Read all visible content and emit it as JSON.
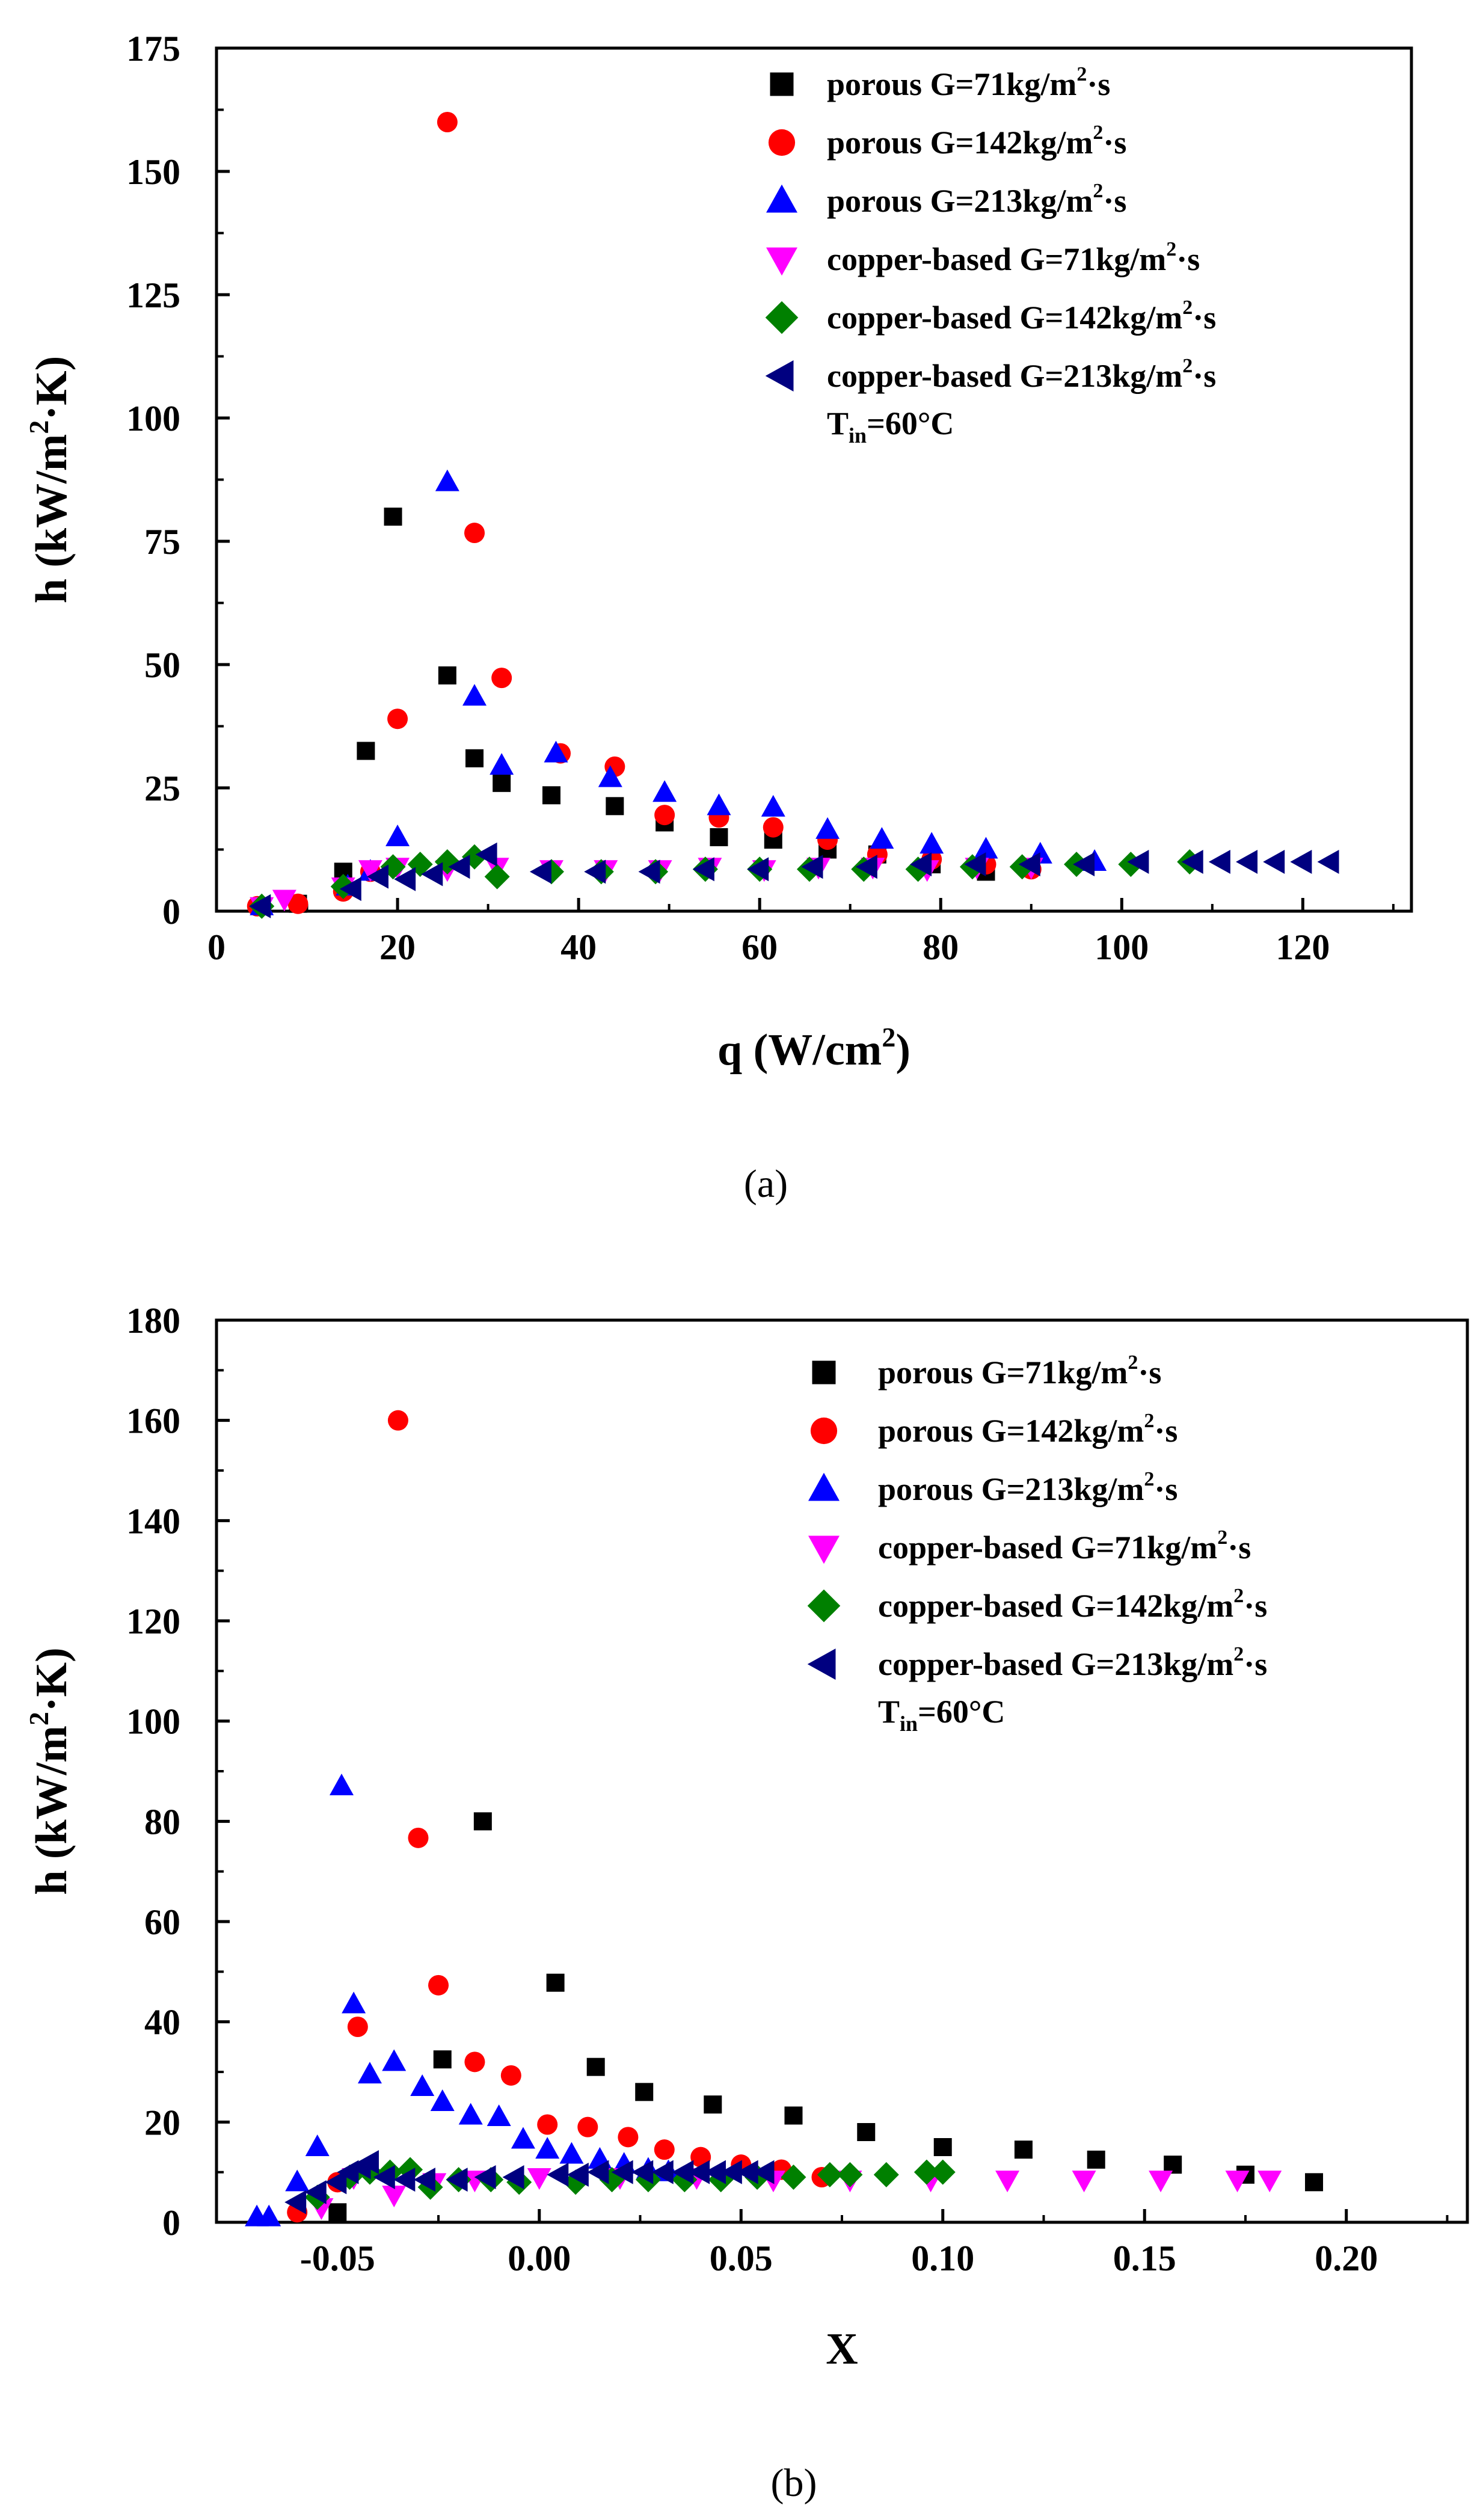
{
  "chart_data": [
    {
      "type": "scatter",
      "caption": "(a)",
      "xlabel": "q (W/cm",
      "xlabel_sup": "2",
      "xlabel_tail": ")",
      "ylabel": "h (kW/m",
      "ylabel_sup": "2",
      "ylabel_tail": "·K)",
      "xlim": [
        0,
        132
      ],
      "ylim": [
        0,
        175
      ],
      "xticks": [
        0,
        20,
        40,
        60,
        80,
        100,
        120
      ],
      "xtick_labels": [
        "0",
        "20",
        "40",
        "60",
        "80",
        "100",
        "120"
      ],
      "yticks": [
        0,
        25,
        50,
        75,
        100,
        125,
        150,
        175
      ],
      "ytick_labels": [
        "0",
        "25",
        "50",
        "75",
        "100",
        "125",
        "150",
        "175"
      ],
      "annotation": {
        "main": "T",
        "sub": "in",
        "tail": "=60°C"
      },
      "series": [
        {
          "name": "porous  G=71kg/m",
          "legend_sup": "2",
          "legend_tail": "·s",
          "marker": "square",
          "color": "#000000",
          "x": [
            5,
            9,
            14,
            16.5,
            19.5,
            25.5,
            28.5,
            31.5,
            37,
            44,
            49.5,
            55.5,
            61.5,
            67.5,
            73,
            79,
            85
          ],
          "y": [
            1,
            1.5,
            8,
            32.5,
            80,
            47.8,
            31,
            26,
            23.5,
            21.3,
            18,
            15,
            14.5,
            12.5,
            11.5,
            9.5,
            8
          ]
        },
        {
          "name": "porous  G=142kg/m",
          "legend_sup": "2",
          "legend_tail": "·s",
          "marker": "circle",
          "color": "#ff0000",
          "x": [
            4.5,
            9,
            14,
            17,
            20,
            25.5,
            28.5,
            31.5,
            38,
            44,
            49.5,
            55.5,
            61.5,
            67.5,
            73,
            79,
            85,
            90
          ],
          "y": [
            1,
            1.5,
            4,
            8,
            39,
            160,
            76.7,
            47.3,
            32,
            29.3,
            19.5,
            19,
            17,
            14.5,
            11.5,
            10.5,
            9.5,
            8.5
          ]
        },
        {
          "name": "porous  G=213kg/m",
          "legend_sup": "2",
          "legend_tail": "·s",
          "marker": "triangle-up",
          "color": "#0000ff",
          "x": [
            5,
            14.5,
            17,
            20,
            25.5,
            28.5,
            31.5,
            37.5,
            43.5,
            49.5,
            55.5,
            61.5,
            67.5,
            73.5,
            79,
            85,
            91,
            97
          ],
          "y": [
            1,
            5,
            8,
            15,
            87,
            43.5,
            29.5,
            32,
            27,
            24,
            21.3,
            21,
            16.5,
            14.5,
            13.5,
            12.5,
            11.5,
            10
          ]
        },
        {
          "name": "copper-based    G=71kg/m",
          "legend_sup": "2",
          "legend_tail": "·s",
          "marker": "triangle-down",
          "color": "#ff00ff",
          "x": [
            5,
            7.5,
            14,
            17,
            20,
            25.5,
            31,
            37,
            43,
            49,
            54.5,
            60.5,
            66.5,
            72.5,
            78.5,
            84,
            90
          ],
          "y": [
            1,
            2.5,
            5,
            8.5,
            9,
            8.5,
            9,
            8.5,
            8.5,
            8.5,
            9,
            8.5,
            9,
            9,
            8.5,
            9,
            9
          ]
        },
        {
          "name": "copper-based    G=142kg/m",
          "legend_sup": "2",
          "legend_tail": "·s",
          "marker": "diamond",
          "color": "#008000",
          "x": [
            5,
            14,
            19.5,
            22.5,
            25.5,
            28.5,
            31,
            37,
            42.5,
            48.5,
            54,
            60,
            65.5,
            71.5,
            77.5,
            83.5,
            89,
            95,
            101,
            107.5
          ],
          "y": [
            1,
            5,
            9,
            9.5,
            10,
            11,
            7,
            8,
            8,
            8,
            8.5,
            8.5,
            8.5,
            8.5,
            8.5,
            9,
            9,
            9.5,
            9.5,
            10
          ]
        },
        {
          "name": "copper-based    G=213kg/m",
          "legend_sup": "2",
          "legend_tail": "·s",
          "marker": "triangle-left",
          "color": "#000080",
          "x": [
            5,
            15,
            18,
            21,
            24,
            27,
            30,
            36,
            42,
            48,
            54,
            60,
            66,
            72,
            78,
            84,
            90,
            96,
            102,
            108,
            111,
            114,
            117,
            120,
            123
          ],
          "y": [
            1,
            4.5,
            7,
            6.5,
            7.5,
            9,
            11.5,
            8,
            8,
            8,
            8.5,
            8.5,
            9,
            9,
            9.5,
            9.5,
            9.5,
            9.5,
            10,
            10,
            10,
            10,
            10,
            10,
            10
          ]
        }
      ]
    },
    {
      "type": "scatter",
      "caption": "(b)",
      "xlabel": "X",
      "ylabel": "h (kW/m",
      "ylabel_sup": "2",
      "ylabel_tail": "·K)",
      "xlim": [
        -0.08,
        0.23
      ],
      "ylim": [
        0,
        180
      ],
      "xticks": [
        -0.05,
        0.0,
        0.05,
        0.1,
        0.15,
        0.2
      ],
      "xtick_labels": [
        "-0.05",
        "0.00",
        "0.05",
        "0.10",
        "0.15",
        "0.20"
      ],
      "yticks": [
        0,
        20,
        40,
        60,
        80,
        100,
        120,
        140,
        160,
        180
      ],
      "ytick_labels": [
        "0",
        "20",
        "40",
        "60",
        "80",
        "100",
        "120",
        "140",
        "160",
        "180"
      ],
      "annotation": {
        "main": "T",
        "sub": "in",
        "tail": "=60°C"
      },
      "series": [
        {
          "name": "porous  G=71kg/m",
          "legend_sup": "2",
          "legend_tail": "·s",
          "marker": "square",
          "color": "#000000",
          "x": [
            -0.05,
            -0.024,
            -0.014,
            0.004,
            0.014,
            0.026,
            0.043,
            0.063,
            0.081,
            0.1,
            0.12,
            0.138,
            0.157,
            0.175,
            0.192
          ],
          "y": [
            2,
            32.5,
            80,
            47.8,
            31,
            26,
            23.5,
            21.3,
            18,
            15,
            14.5,
            12.5,
            11.5,
            9.5,
            8
          ]
        },
        {
          "name": "porous  G=142kg/m",
          "legend_sup": "2",
          "legend_tail": "·s",
          "marker": "circle",
          "color": "#ff0000",
          "x": [
            -0.06,
            -0.05,
            -0.045,
            -0.035,
            -0.03,
            -0.025,
            -0.016,
            -0.007,
            0.002,
            0.012,
            0.022,
            0.031,
            0.04,
            0.05,
            0.06,
            0.07
          ],
          "y": [
            2,
            8,
            39,
            160,
            76.7,
            47.3,
            32,
            29.3,
            19.5,
            19,
            17,
            14.5,
            13,
            11.5,
            10.5,
            9
          ]
        },
        {
          "name": "porous  G=213kg/m",
          "legend_sup": "2",
          "legend_tail": "·s",
          "marker": "triangle-up",
          "color": "#0000ff",
          "x": [
            -0.07,
            -0.067,
            -0.06,
            -0.055,
            -0.049,
            -0.046,
            -0.042,
            -0.036,
            -0.029,
            -0.024,
            -0.017,
            -0.01,
            -0.004,
            0.002,
            0.008,
            0.015,
            0.021,
            0.027,
            0.032
          ],
          "y": [
            1,
            1,
            8,
            15,
            87,
            43.5,
            29.5,
            32,
            27,
            24,
            21.3,
            21,
            16.5,
            14.5,
            13.5,
            12.5,
            11.5,
            10.5,
            10
          ]
        },
        {
          "name": "copper-based    G=71kg/m",
          "legend_sup": "2",
          "legend_tail": "·s",
          "marker": "triangle-down",
          "color": "#ff00ff",
          "x": [
            -0.054,
            -0.046,
            -0.036,
            -0.026,
            -0.016,
            0.0,
            0.02,
            0.039,
            0.058,
            0.077,
            0.097,
            0.116,
            0.135,
            0.154,
            0.173,
            0.181
          ],
          "y": [
            3,
            9,
            5.5,
            8,
            8.5,
            9,
            9,
            9,
            8.5,
            8.5,
            8.5,
            8.5,
            8.5,
            8.5,
            8.5,
            8.5
          ]
        },
        {
          "name": "copper-based    G=142kg/m",
          "legend_sup": "2",
          "legend_tail": "·s",
          "marker": "diamond",
          "color": "#008000",
          "x": [
            -0.055,
            -0.047,
            -0.042,
            -0.037,
            -0.032,
            -0.027,
            -0.02,
            -0.012,
            -0.005,
            0.009,
            0.018,
            0.027,
            0.036,
            0.045,
            0.054,
            0.063,
            0.072,
            0.077,
            0.086,
            0.096,
            0.1
          ],
          "y": [
            5,
            9,
            10,
            10,
            10.5,
            7,
            8.5,
            8.5,
            8,
            8,
            8.5,
            8.5,
            8.5,
            8.5,
            9,
            9,
            9.5,
            9.5,
            9.5,
            10,
            10
          ]
        },
        {
          "name": "copper-based    G=213kg/m",
          "legend_sup": "2",
          "legend_tail": "·s",
          "marker": "triangle-left",
          "color": "#000080",
          "x": [
            -0.06,
            -0.055,
            -0.05,
            -0.047,
            -0.044,
            -0.042,
            -0.038,
            -0.033,
            -0.028,
            -0.02,
            -0.013,
            -0.006,
            0.005,
            0.01,
            0.015,
            0.021,
            0.026,
            0.031,
            0.036,
            0.04,
            0.044,
            0.048,
            0.052,
            0.056
          ],
          "y": [
            4,
            6,
            8,
            10,
            11,
            12,
            9,
            8.5,
            8.5,
            8.5,
            9,
            9,
            9.5,
            9.5,
            10,
            10,
            10,
            10,
            10,
            10,
            10,
            10,
            10,
            10
          ]
        }
      ]
    }
  ]
}
